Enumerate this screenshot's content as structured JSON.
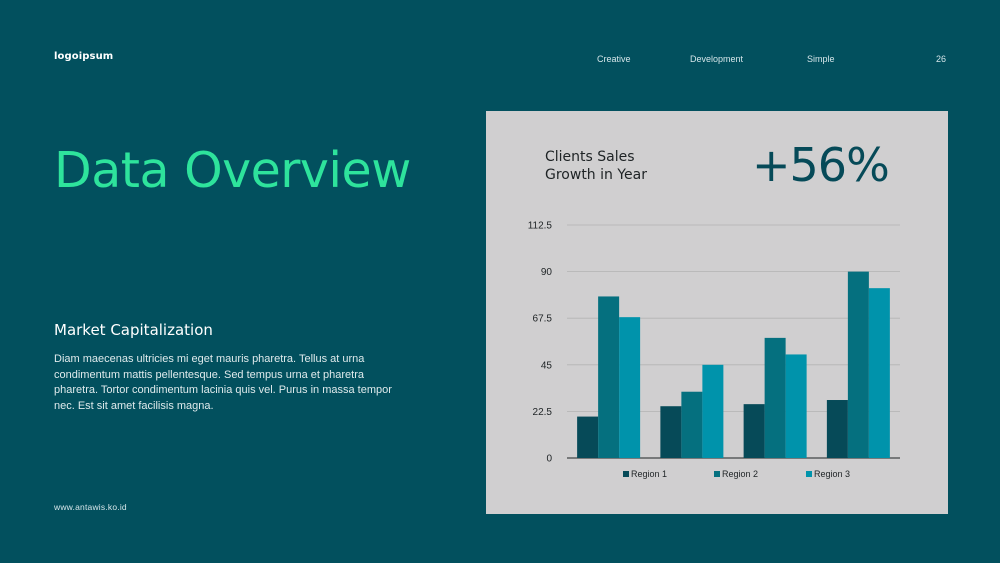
{
  "header": {
    "logo": "logoipsum",
    "nav": [
      "Creative",
      "Development",
      "Simple"
    ],
    "page_number": "26"
  },
  "main": {
    "title": "Data Overview",
    "subtitle": "Market Capitalization",
    "body": "Diam maecenas ultricies mi eget mauris pharetra. Tellus at urna condimentum mattis pellentesque. Sed tempus urna et pharetra pharetra. Tortor condimentum lacinia quis vel. Purus in massa tempor nec. Est sit amet facilisis magna."
  },
  "card": {
    "title_line1": "Clients Sales",
    "title_line2": "Growth in Year",
    "growth": "+56%"
  },
  "footer": {
    "url": "www.antawis.ko.id"
  },
  "colors": {
    "background": "#02505e",
    "accent": "#2ee39c",
    "card": "#d0cfd0"
  },
  "chart_data": {
    "type": "bar",
    "categories": [
      "",
      "",
      "",
      ""
    ],
    "series": [
      {
        "name": "Region 1",
        "values": [
          20,
          25,
          26,
          28
        ],
        "color": "#064a58"
      },
      {
        "name": "Region 2",
        "values": [
          78,
          32,
          58,
          90
        ],
        "color": "#05707f"
      },
      {
        "name": "Region 3",
        "values": [
          68,
          45,
          50,
          82
        ],
        "color": "#0093ab"
      }
    ],
    "yticks": [
      "0",
      "22.5",
      "45",
      "67.5",
      "90",
      "112.5"
    ],
    "ylim": [
      0,
      112.5
    ],
    "grid": true,
    "legend": "bottom"
  }
}
